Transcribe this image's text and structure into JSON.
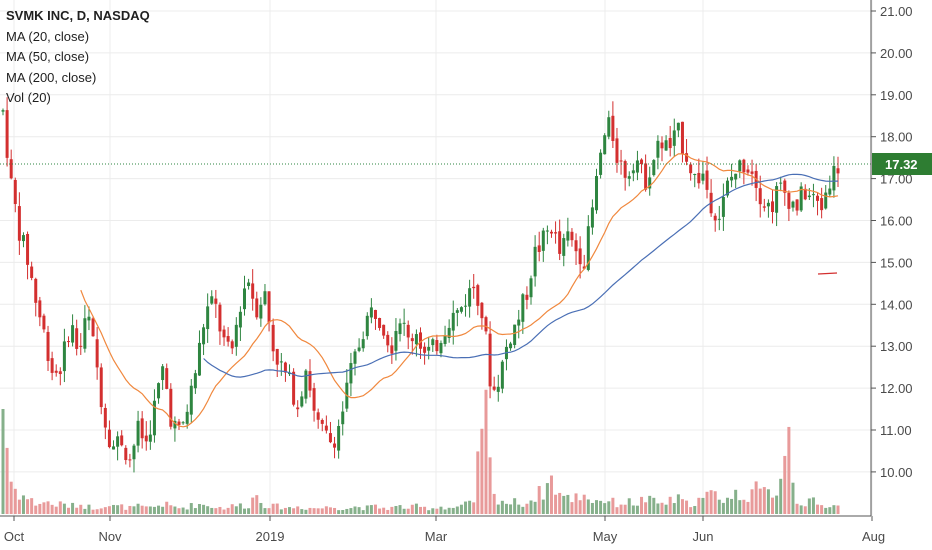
{
  "colors": {
    "up": "#2e8540",
    "down": "#d32f2f",
    "vol_up": "#86b08b",
    "vol_down": "#e89a9a",
    "ma20": "#f0883e",
    "ma50": "#4a6fb5",
    "price_line": "#2e8540",
    "price_tag": "#2e7d32",
    "grid": "#ececec"
  },
  "legend": {
    "title": "SVMK INC, D, NASDAQ",
    "ma20": "MA (20, close)",
    "ma50": "MA (50, close)",
    "ma200": "MA (200, close)",
    "vol": "Vol (20)"
  },
  "chart_data": {
    "type": "candlestick",
    "title": "SVMK INC, D, NASDAQ",
    "ylim": [
      9.5,
      21.0
    ],
    "y_ticks": [
      "21.00",
      "20.00",
      "19.00",
      "18.00",
      "17.00",
      "16.00",
      "15.00",
      "14.00",
      "13.00",
      "12.00",
      "11.00",
      "10.00"
    ],
    "x_ticks": [
      "Oct",
      "Nov",
      "2019",
      "Mar",
      "May",
      "Jun",
      "Aug"
    ],
    "last_price": "17.32",
    "grid": true,
    "price_path": [
      18.6,
      16.8,
      15.7,
      15.0,
      14.0,
      13.2,
      12.3,
      12.6,
      13.6,
      12.8,
      13.8,
      12.7,
      11.3,
      10.6,
      10.8,
      10.3,
      11.0,
      10.7,
      11.6,
      12.5,
      11.2,
      10.9,
      11.6,
      12.6,
      13.8,
      14.1,
      13.2,
      12.7,
      13.9,
      14.7,
      13.9,
      14.3,
      13.0,
      12.5,
      12.1,
      11.6,
      12.6,
      11.2,
      10.9,
      10.7,
      11.2,
      12.2,
      12.9,
      13.6,
      13.9,
      13.6,
      13.0,
      13.8,
      13.1,
      13.4,
      12.8,
      12.9,
      13.3,
      13.7,
      13.8,
      14.2,
      14.5,
      13.6,
      11.8,
      12.4,
      13.2,
      13.6,
      14.2,
      15.2,
      15.5,
      15.9,
      15.2,
      15.6,
      15.3,
      15.1,
      16.4,
      17.8,
      18.3,
      17.4,
      17.1,
      17.6,
      16.9,
      17.4,
      17.9,
      17.7,
      18.1,
      17.6,
      17.0,
      17.1,
      16.4,
      16.1,
      16.9,
      17.2,
      17.4,
      17.2,
      16.5,
      16.3,
      16.8,
      16.6,
      16.3,
      16.7,
      16.5,
      16.3,
      17.0,
      17.3
    ],
    "vol_path": [
      2.2,
      0.6,
      0.4,
      0.3,
      0.2,
      0.25,
      0.18,
      0.2,
      0.15,
      0.2,
      0.15,
      0.12,
      0.2,
      0.15,
      0.15,
      0.12,
      0.15,
      0.12,
      0.15,
      0.2,
      0.15,
      0.12,
      0.15,
      0.2,
      0.18,
      0.15,
      0.12,
      0.15,
      0.18,
      0.15,
      0.4,
      0.2,
      0.15,
      0.15,
      0.12,
      0.15,
      0.12,
      0.12,
      0.12,
      0.15,
      0.12,
      0.12,
      0.15,
      0.12,
      0.15,
      0.12,
      0.12,
      0.15,
      0.12,
      0.15,
      0.12,
      0.12,
      0.15,
      0.12,
      0.15,
      0.2,
      0.2,
      2.6,
      0.35,
      0.3,
      0.2,
      0.25,
      0.2,
      0.35,
      0.45,
      0.7,
      0.4,
      0.3,
      0.35,
      0.4,
      0.25,
      0.3,
      0.25,
      0.2,
      0.25,
      0.2,
      0.3,
      0.25,
      0.2,
      0.25,
      0.3,
      0.2,
      0.25,
      0.3,
      0.4,
      0.35,
      0.3,
      0.4,
      0.35,
      0.5,
      0.4,
      0.45,
      0.5,
      1.9,
      0.3,
      0.2,
      0.25,
      0.15,
      0.2,
      0.15
    ]
  }
}
